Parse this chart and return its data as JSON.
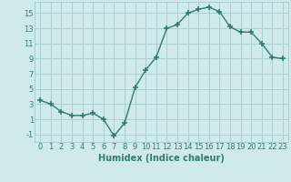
{
  "x": [
    0,
    1,
    2,
    3,
    4,
    5,
    6,
    7,
    8,
    9,
    10,
    11,
    12,
    13,
    14,
    15,
    16,
    17,
    18,
    19,
    20,
    21,
    22,
    23
  ],
  "y": [
    3.5,
    3.0,
    2.0,
    1.5,
    1.5,
    1.8,
    1.0,
    -1.2,
    0.5,
    5.2,
    7.5,
    9.2,
    13.0,
    13.5,
    15.0,
    15.5,
    15.8,
    15.2,
    13.2,
    12.5,
    12.5,
    11.0,
    9.2,
    9.0
  ],
  "line_color": "#2e7d6e",
  "marker": "+",
  "marker_size": 4,
  "marker_lw": 1.2,
  "bg_color": "#ceeaea",
  "grid_color": "#aacfcf",
  "xlabel": "Humidex (Indice chaleur)",
  "xlabel_color": "#2e7d6e",
  "xlabel_fontsize": 7,
  "tick_color": "#2e7d6e",
  "tick_fontsize": 6,
  "ylim": [
    -2.0,
    16.5
  ],
  "yticks": [
    -1,
    1,
    3,
    5,
    7,
    9,
    11,
    13,
    15
  ],
  "xlim": [
    -0.5,
    23.5
  ],
  "xticks": [
    0,
    1,
    2,
    3,
    4,
    5,
    6,
    7,
    8,
    9,
    10,
    11,
    12,
    13,
    14,
    15,
    16,
    17,
    18,
    19,
    20,
    21,
    22,
    23
  ],
  "line_width": 1.0
}
